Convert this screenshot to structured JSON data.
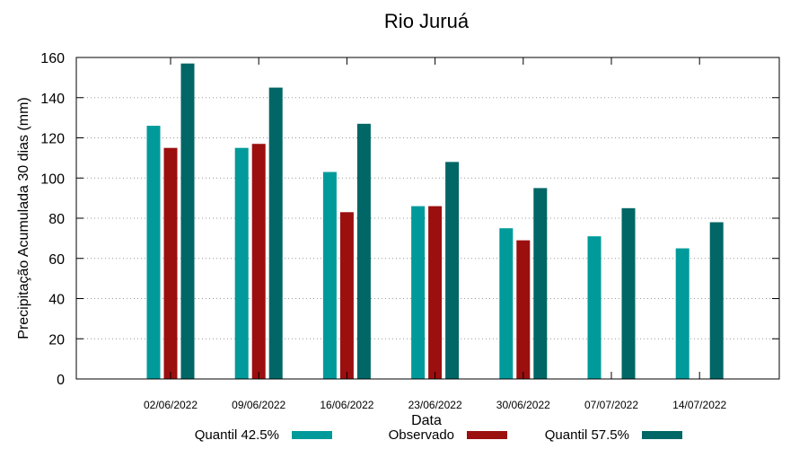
{
  "chart_data": {
    "type": "bar",
    "title": "Rio Juruá",
    "xlabel": "Data",
    "ylabel": "Precipitação Acumulada 30 dias (mm)",
    "ylim": [
      0,
      160
    ],
    "yticks": [
      0,
      20,
      40,
      60,
      80,
      100,
      120,
      140,
      160
    ],
    "grid": true,
    "legend_position": "bottom",
    "categories": [
      "02/06/2022",
      "09/06/2022",
      "16/06/2022",
      "23/06/2022",
      "30/06/2022",
      "07/07/2022",
      "14/07/2022"
    ],
    "series": [
      {
        "name": "Quantil 42.5%",
        "color": "#009a9a",
        "values": [
          126,
          115,
          103,
          86,
          75,
          71,
          65
        ]
      },
      {
        "name": "Observado",
        "color": "#9b0f0f",
        "values": [
          115,
          117,
          83,
          86,
          69,
          null,
          null
        ]
      },
      {
        "name": "Quantil 57.5%",
        "color": "#006666",
        "values": [
          157,
          145,
          127,
          108,
          95,
          85,
          78
        ]
      }
    ]
  }
}
